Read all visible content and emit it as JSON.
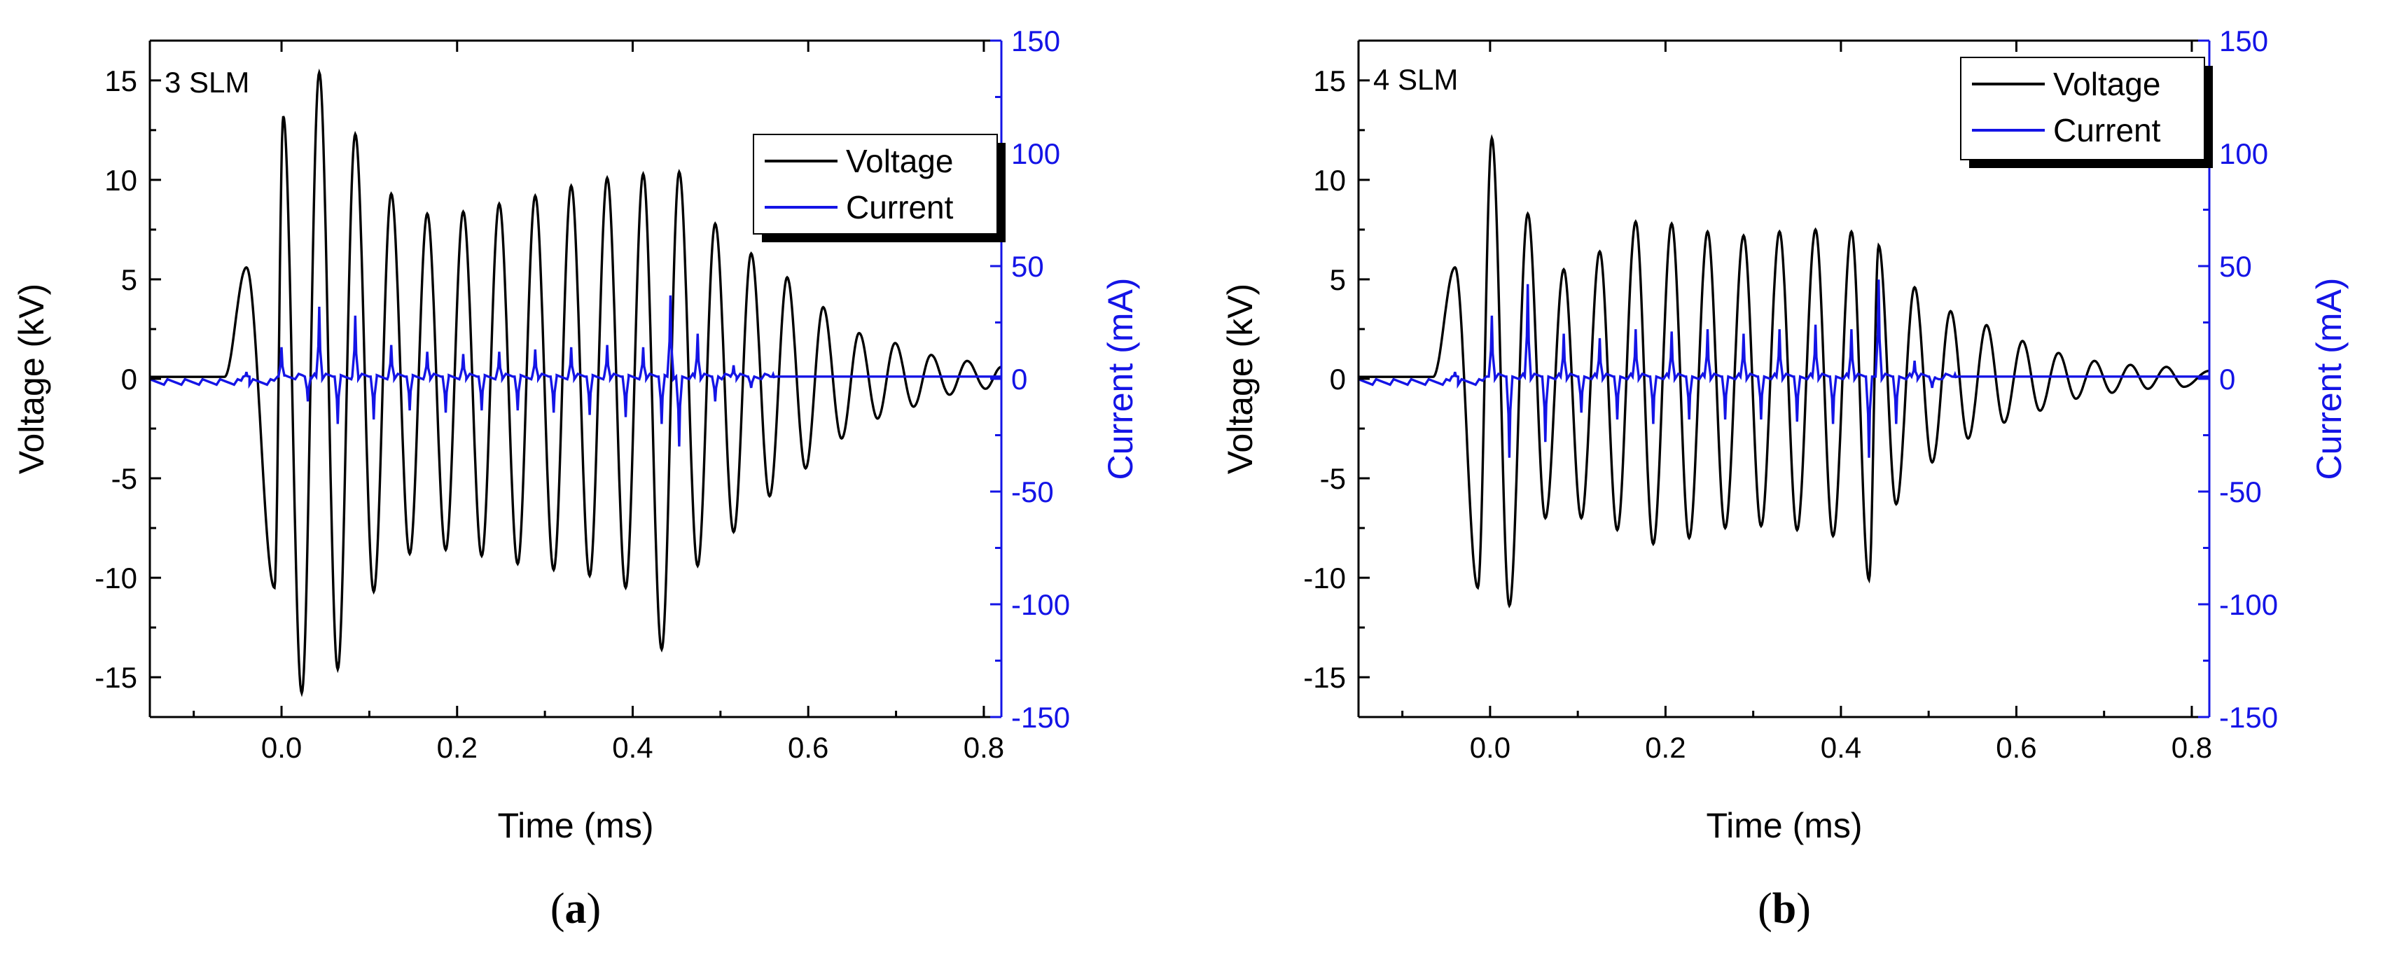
{
  "colors": {
    "voltage": "#000000",
    "current": "#1414e6",
    "axis_left": "#000000",
    "axis_right": "#1414e6",
    "background": "#ffffff"
  },
  "chart_data": [
    {
      "type": "line",
      "panel_label_prefix": "(",
      "panel_label_letter": "a",
      "panel_label_suffix": ")",
      "annotation": "3 SLM",
      "xlabel": "Time (ms)",
      "ylabel": "Voltage (kV)",
      "y2label": "Current (mA)",
      "xlim": [
        -0.15,
        0.82
      ],
      "ylim": [
        -17,
        17
      ],
      "y2lim": [
        -150,
        150
      ],
      "xticks": [
        "0.0",
        "0.2",
        "0.4",
        "0.6",
        "0.8"
      ],
      "yticks": [
        "15",
        "10",
        "5",
        "0",
        "-5",
        "-10",
        "-15"
      ],
      "y2ticks": [
        "150",
        "100",
        "50",
        "0",
        "-50",
        "-100",
        "-150"
      ],
      "legend": [
        "Voltage",
        "Current"
      ],
      "legend_position": "upper-right",
      "series": [
        {
          "name": "Voltage",
          "axis": "left",
          "color": "#000000",
          "start": -0.065,
          "baseline": 0.1,
          "pre_peak": {
            "t": -0.04,
            "v": 5.6
          },
          "extrema": [
            {
              "t": -0.008,
              "v": -10.5
            },
            {
              "t": 0.002,
              "v": 13.2
            },
            {
              "t": 0.023,
              "v": -15.8
            },
            {
              "t": 0.043,
              "v": 15.4
            },
            {
              "t": 0.064,
              "v": -14.6
            },
            {
              "t": 0.084,
              "v": 12.3
            },
            {
              "t": 0.105,
              "v": -10.7
            },
            {
              "t": 0.125,
              "v": 9.3
            },
            {
              "t": 0.146,
              "v": -8.8
            },
            {
              "t": 0.166,
              "v": 8.3
            },
            {
              "t": 0.187,
              "v": -8.6
            },
            {
              "t": 0.207,
              "v": 8.4
            },
            {
              "t": 0.228,
              "v": -8.9
            },
            {
              "t": 0.248,
              "v": 8.8
            },
            {
              "t": 0.269,
              "v": -9.3
            },
            {
              "t": 0.289,
              "v": 9.2
            },
            {
              "t": 0.31,
              "v": -9.6
            },
            {
              "t": 0.33,
              "v": 9.7
            },
            {
              "t": 0.351,
              "v": -9.9
            },
            {
              "t": 0.371,
              "v": 10.1
            },
            {
              "t": 0.392,
              "v": -10.5
            },
            {
              "t": 0.412,
              "v": 10.3
            },
            {
              "t": 0.433,
              "v": -13.6
            },
            {
              "t": 0.453,
              "v": 10.4
            },
            {
              "t": 0.474,
              "v": -9.4
            },
            {
              "t": 0.494,
              "v": 7.8
            },
            {
              "t": 0.515,
              "v": -7.7
            },
            {
              "t": 0.535,
              "v": 6.3
            },
            {
              "t": 0.556,
              "v": -5.9
            },
            {
              "t": 0.576,
              "v": 5.1
            },
            {
              "t": 0.597,
              "v": -4.5
            },
            {
              "t": 0.617,
              "v": 3.6
            },
            {
              "t": 0.638,
              "v": -3.0
            },
            {
              "t": 0.658,
              "v": 2.3
            },
            {
              "t": 0.679,
              "v": -2.0
            },
            {
              "t": 0.699,
              "v": 1.8
            },
            {
              "t": 0.72,
              "v": -1.4
            },
            {
              "t": 0.74,
              "v": 1.2
            },
            {
              "t": 0.761,
              "v": -0.8
            },
            {
              "t": 0.781,
              "v": 0.9
            },
            {
              "t": 0.802,
              "v": -0.5
            },
            {
              "t": 0.82,
              "v": 0.6
            }
          ]
        },
        {
          "name": "Current",
          "axis": "right",
          "color": "#1414e6",
          "baseline": 1,
          "spikes": [
            {
              "t": -0.04,
              "v": 3
            },
            {
              "t": 0.0,
              "v": 14
            },
            {
              "t": 0.03,
              "v": -10
            },
            {
              "t": 0.043,
              "v": 32
            },
            {
              "t": 0.064,
              "v": -20
            },
            {
              "t": 0.084,
              "v": 28
            },
            {
              "t": 0.105,
              "v": -18
            },
            {
              "t": 0.125,
              "v": 15
            },
            {
              "t": 0.146,
              "v": -14
            },
            {
              "t": 0.166,
              "v": 12
            },
            {
              "t": 0.187,
              "v": -15
            },
            {
              "t": 0.207,
              "v": 11
            },
            {
              "t": 0.228,
              "v": -14
            },
            {
              "t": 0.248,
              "v": 12
            },
            {
              "t": 0.269,
              "v": -14
            },
            {
              "t": 0.289,
              "v": 13
            },
            {
              "t": 0.31,
              "v": -15
            },
            {
              "t": 0.33,
              "v": 14
            },
            {
              "t": 0.351,
              "v": -16
            },
            {
              "t": 0.371,
              "v": 15
            },
            {
              "t": 0.392,
              "v": -17
            },
            {
              "t": 0.412,
              "v": 14
            },
            {
              "t": 0.433,
              "v": -20
            },
            {
              "t": 0.443,
              "v": 37
            },
            {
              "t": 0.453,
              "v": -30
            },
            {
              "t": 0.474,
              "v": 20
            },
            {
              "t": 0.494,
              "v": -10
            },
            {
              "t": 0.515,
              "v": 6
            },
            {
              "t": 0.535,
              "v": -4
            },
            {
              "t": 0.56,
              "v": 2
            }
          ]
        }
      ]
    },
    {
      "type": "line",
      "panel_label_prefix": "(",
      "panel_label_letter": "b",
      "panel_label_suffix": ")",
      "annotation": "4 SLM",
      "xlabel": "Time (ms)",
      "ylabel": "Voltage (kV)",
      "y2label": "Current (mA)",
      "xlim": [
        -0.15,
        0.82
      ],
      "ylim": [
        -17,
        17
      ],
      "y2lim": [
        -150,
        150
      ],
      "xticks": [
        "0.0",
        "0.2",
        "0.4",
        "0.6",
        "0.8"
      ],
      "yticks": [
        "15",
        "10",
        "5",
        "0",
        "-5",
        "-10",
        "-15"
      ],
      "y2ticks": [
        "150",
        "100",
        "50",
        "0",
        "-50",
        "-100",
        "-150"
      ],
      "legend": [
        "Voltage",
        "Current"
      ],
      "legend_position": "top-right",
      "series": [
        {
          "name": "Voltage",
          "axis": "left",
          "color": "#000000",
          "start": -0.065,
          "baseline": 0.1,
          "pre_peak": {
            "t": -0.04,
            "v": 5.6
          },
          "extrema": [
            {
              "t": -0.014,
              "v": -10.5
            },
            {
              "t": 0.002,
              "v": 12.1
            },
            {
              "t": 0.022,
              "v": -11.4
            },
            {
              "t": 0.043,
              "v": 8.3
            },
            {
              "t": 0.063,
              "v": -7.0
            },
            {
              "t": 0.084,
              "v": 5.5
            },
            {
              "t": 0.104,
              "v": -7.0
            },
            {
              "t": 0.125,
              "v": 6.4
            },
            {
              "t": 0.145,
              "v": -7.6
            },
            {
              "t": 0.166,
              "v": 7.9
            },
            {
              "t": 0.186,
              "v": -8.3
            },
            {
              "t": 0.207,
              "v": 7.8
            },
            {
              "t": 0.227,
              "v": -8.0
            },
            {
              "t": 0.248,
              "v": 7.4
            },
            {
              "t": 0.268,
              "v": -7.5
            },
            {
              "t": 0.289,
              "v": 7.2
            },
            {
              "t": 0.309,
              "v": -7.4
            },
            {
              "t": 0.33,
              "v": 7.4
            },
            {
              "t": 0.35,
              "v": -7.6
            },
            {
              "t": 0.371,
              "v": 7.5
            },
            {
              "t": 0.391,
              "v": -7.9
            },
            {
              "t": 0.412,
              "v": 7.4
            },
            {
              "t": 0.432,
              "v": -10.1
            },
            {
              "t": 0.443,
              "v": 6.7
            },
            {
              "t": 0.463,
              "v": -6.3
            },
            {
              "t": 0.484,
              "v": 4.6
            },
            {
              "t": 0.504,
              "v": -4.2
            },
            {
              "t": 0.525,
              "v": 3.4
            },
            {
              "t": 0.545,
              "v": -3.0
            },
            {
              "t": 0.566,
              "v": 2.7
            },
            {
              "t": 0.586,
              "v": -2.2
            },
            {
              "t": 0.607,
              "v": 1.9
            },
            {
              "t": 0.627,
              "v": -1.6
            },
            {
              "t": 0.648,
              "v": 1.3
            },
            {
              "t": 0.668,
              "v": -1.0
            },
            {
              "t": 0.689,
              "v": 0.9
            },
            {
              "t": 0.709,
              "v": -0.7
            },
            {
              "t": 0.73,
              "v": 0.7
            },
            {
              "t": 0.75,
              "v": -0.5
            },
            {
              "t": 0.771,
              "v": 0.6
            },
            {
              "t": 0.791,
              "v": -0.4
            },
            {
              "t": 0.82,
              "v": 0.4
            }
          ]
        },
        {
          "name": "Current",
          "axis": "right",
          "color": "#1414e6",
          "baseline": 1,
          "spikes": [
            {
              "t": -0.04,
              "v": 3
            },
            {
              "t": 0.002,
              "v": 28
            },
            {
              "t": 0.022,
              "v": -35
            },
            {
              "t": 0.043,
              "v": 42
            },
            {
              "t": 0.063,
              "v": -28
            },
            {
              "t": 0.084,
              "v": 20
            },
            {
              "t": 0.104,
              "v": -15
            },
            {
              "t": 0.125,
              "v": 18
            },
            {
              "t": 0.145,
              "v": -18
            },
            {
              "t": 0.166,
              "v": 22
            },
            {
              "t": 0.186,
              "v": -20
            },
            {
              "t": 0.207,
              "v": 21
            },
            {
              "t": 0.227,
              "v": -18
            },
            {
              "t": 0.248,
              "v": 22
            },
            {
              "t": 0.268,
              "v": -18
            },
            {
              "t": 0.289,
              "v": 20
            },
            {
              "t": 0.309,
              "v": -18
            },
            {
              "t": 0.33,
              "v": 22
            },
            {
              "t": 0.35,
              "v": -19
            },
            {
              "t": 0.371,
              "v": 24
            },
            {
              "t": 0.391,
              "v": -20
            },
            {
              "t": 0.412,
              "v": 22
            },
            {
              "t": 0.432,
              "v": -35
            },
            {
              "t": 0.443,
              "v": 44
            },
            {
              "t": 0.463,
              "v": -20
            },
            {
              "t": 0.484,
              "v": 8
            },
            {
              "t": 0.504,
              "v": -4
            },
            {
              "t": 0.53,
              "v": 2
            }
          ]
        }
      ]
    }
  ]
}
